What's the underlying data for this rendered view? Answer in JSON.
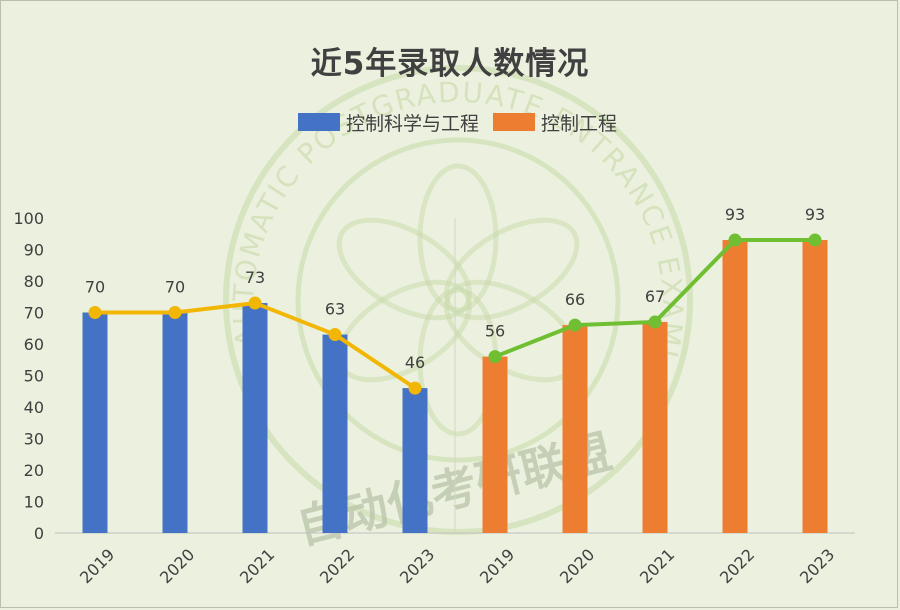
{
  "title": "近5年录取人数情况",
  "colors": {
    "background": "#ebf1de",
    "series1_bar": "#4472c4",
    "series2_bar": "#ed7d31",
    "series1_line": "#f2b705",
    "series2_line": "#70bf33",
    "watermark": "#c7d9a8"
  },
  "watermark": {
    "ring_text": "AUTOMATIC POSTGRADUATE ENTRANCE EXAMINATION ALLIANCE",
    "bottom_text": "自动化考研联盟"
  },
  "chart_data": {
    "type": "bar",
    "ylim": [
      0,
      100
    ],
    "yticks": [
      0,
      10,
      20,
      30,
      40,
      50,
      60,
      70,
      80,
      90,
      100
    ],
    "grid": false,
    "legend_position": "top-center",
    "series": [
      {
        "name": "控制科学与工程",
        "categories": [
          "2019",
          "2020",
          "2021",
          "2022",
          "2023"
        ],
        "values": [
          70,
          70,
          73,
          63,
          46
        ]
      },
      {
        "name": "控制工程",
        "categories": [
          "2019",
          "2020",
          "2021",
          "2022",
          "2023"
        ],
        "values": [
          56,
          66,
          67,
          93,
          93
        ]
      }
    ]
  }
}
